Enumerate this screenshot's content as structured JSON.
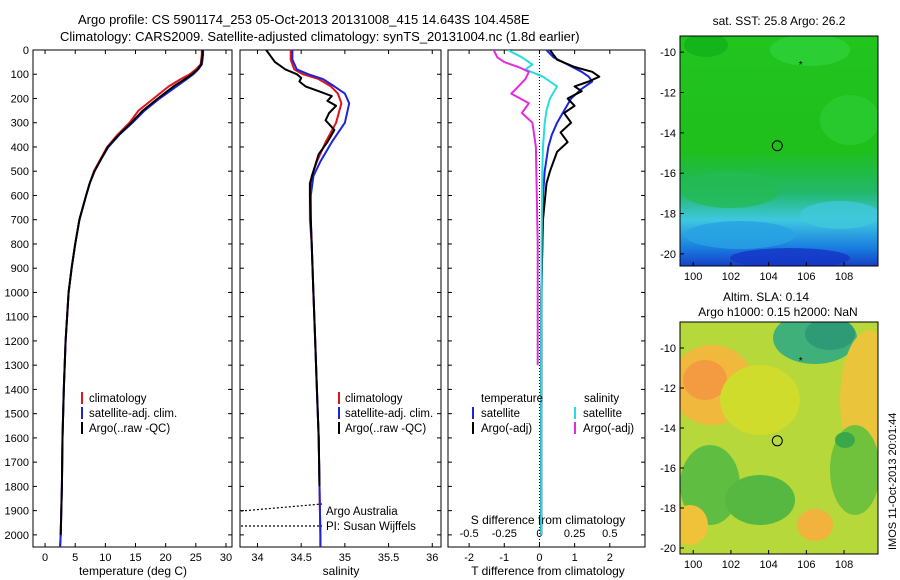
{
  "header": {
    "line1": "Argo profile: CS 5901174_253 05-Oct-2013 20131008_415 14.643S 104.458E",
    "line2": "Climatology: CARS2009. Satellite-adjusted climatology: synTS_20131004.nc (1.8d earlier)"
  },
  "stamp": "IMOS 11-Oct-2013 20:01:44",
  "colors": {
    "red": "#e0141e",
    "blue": "#1a25d8",
    "black": "#000000",
    "cyan": "#27dede",
    "magenta": "#e22ce0"
  },
  "chart_data": [
    {
      "type": "line",
      "panel": "temperature",
      "xlabel": "temperature (deg C)",
      "xlim": [
        -2,
        31
      ],
      "xticks": [
        0,
        5,
        10,
        15,
        20,
        25,
        30
      ],
      "ylim": [
        2050,
        0
      ],
      "yticks": [
        0,
        100,
        200,
        300,
        400,
        500,
        600,
        700,
        800,
        900,
        1000,
        1100,
        1200,
        1300,
        1400,
        1500,
        1600,
        1700,
        1800,
        1900,
        2000
      ],
      "legend": [
        "climatology",
        "satellite-adj. clim.",
        "Argo(..raw -QC)"
      ],
      "series": [
        {
          "name": "climatology",
          "color": "red",
          "x": [
            26,
            26,
            25.9,
            25.8,
            25,
            24,
            22.5,
            20.5,
            18,
            15.5,
            14,
            12,
            10.3,
            9.2,
            8.1,
            7.4,
            6.8,
            5.7,
            5,
            4.4,
            3.9,
            3.4,
            3.1,
            2.9,
            2.8,
            2.6,
            2.5
          ],
          "y": [
            0,
            20,
            40,
            60,
            80,
            100,
            120,
            150,
            200,
            250,
            300,
            350,
            400,
            450,
            500,
            550,
            600,
            700,
            800,
            900,
            1000,
            1200,
            1400,
            1600,
            1800,
            2000,
            2050
          ]
        },
        {
          "name": "satellite-adj. clim.",
          "color": "blue",
          "x": [
            26.2,
            26.2,
            26.1,
            26,
            25.4,
            24.6,
            23.5,
            21.8,
            19,
            16.5,
            14.5,
            12.3,
            10.5,
            9.3,
            8.2,
            7.4,
            6.8,
            5.7,
            5,
            4.4,
            3.9,
            3.4,
            3.1,
            2.9,
            2.8,
            2.6,
            2.5
          ],
          "y": [
            0,
            20,
            40,
            60,
            80,
            100,
            120,
            150,
            200,
            250,
            300,
            350,
            400,
            450,
            500,
            550,
            600,
            700,
            800,
            900,
            1000,
            1200,
            1400,
            1600,
            1800,
            2000,
            2050
          ]
        },
        {
          "name": "Argo(..raw -QC)",
          "color": "black",
          "x": [
            26.1,
            26.1,
            26,
            25.9,
            25.3,
            24.4,
            23.2,
            21.3,
            18.7,
            16.2,
            14.3,
            12.2,
            10.4,
            9.3,
            8.2,
            7.4,
            6.8,
            5.7,
            5,
            4.4,
            3.9,
            3.4,
            3.1,
            2.9,
            2.8,
            2.6
          ],
          "y": [
            0,
            20,
            40,
            60,
            80,
            100,
            120,
            150,
            200,
            250,
            300,
            350,
            400,
            450,
            500,
            550,
            600,
            700,
            800,
            900,
            1000,
            1200,
            1400,
            1600,
            1800,
            2000
          ]
        }
      ]
    },
    {
      "type": "line",
      "panel": "salinity",
      "xlabel": "salinity",
      "xlim": [
        33.8,
        36.1
      ],
      "xticks": [
        34,
        34.5,
        35,
        35.5,
        36
      ],
      "ylim": [
        2050,
        0
      ],
      "legend": [
        "climatology",
        "satellite-adj. clim.",
        "Argo(..raw -QC)"
      ],
      "annotations": [
        "Argo Australia",
        "PI: Susan Wijffels"
      ],
      "series": [
        {
          "name": "climatology",
          "color": "red",
          "x": [
            34.38,
            34.38,
            34.42,
            34.52,
            34.7,
            34.84,
            34.92,
            34.96,
            34.9,
            34.78,
            34.68,
            34.62,
            34.6,
            34.6,
            34.62,
            34.64,
            34.66,
            34.68,
            34.7,
            34.71,
            34.72,
            34.72
          ],
          "y": [
            0,
            40,
            80,
            100,
            120,
            150,
            180,
            220,
            300,
            380,
            460,
            520,
            600,
            700,
            800,
            1000,
            1200,
            1400,
            1600,
            1800,
            2000,
            2050
          ]
        },
        {
          "name": "satellite-adj. clim.",
          "color": "blue",
          "x": [
            34.4,
            34.4,
            34.45,
            34.58,
            34.75,
            34.88,
            35.0,
            35.05,
            35.0,
            34.85,
            34.72,
            34.64,
            34.61,
            34.61,
            34.62,
            34.64,
            34.66,
            34.68,
            34.7,
            34.71,
            34.72,
            34.72
          ],
          "y": [
            0,
            40,
            80,
            100,
            120,
            150,
            180,
            220,
            300,
            380,
            460,
            520,
            600,
            700,
            800,
            1000,
            1200,
            1400,
            1600,
            1800,
            2000,
            2050
          ]
        },
        {
          "name": "Argo(..raw -QC)",
          "color": "black",
          "x": [
            34.1,
            34.15,
            34.2,
            34.32,
            34.45,
            34.5,
            34.48,
            34.55,
            34.7,
            34.85,
            34.8,
            34.9,
            34.82,
            34.78,
            34.88,
            34.8,
            34.7,
            34.64,
            34.6,
            34.6,
            34.61,
            34.62,
            34.64,
            34.66,
            34.68,
            34.7,
            34.71
          ],
          "y": [
            0,
            25,
            50,
            80,
            100,
            115,
            130,
            150,
            170,
            190,
            210,
            230,
            260,
            290,
            330,
            380,
            430,
            500,
            550,
            600,
            700,
            800,
            1000,
            1200,
            1400,
            1600,
            1800
          ]
        }
      ]
    },
    {
      "type": "line",
      "panel": "difference",
      "xlabel": "T difference from climatology",
      "xlabel_top": "S difference from climatology",
      "xlim": [
        -2.6,
        3
      ],
      "xticks": [
        -2,
        -1,
        0,
        1,
        2
      ],
      "xticks_top": [
        -0.5,
        -0.25,
        0,
        0.25,
        0.5
      ],
      "ylim": [
        2050,
        0
      ],
      "legend_headers": [
        "temperature",
        "salinity"
      ],
      "legend": [
        "satellite",
        "Argo(-adj)",
        "satellite",
        "Argo(-adj)"
      ],
      "series": [
        {
          "name": "temperature satellite",
          "color": "blue",
          "x": [
            0.2,
            0.4,
            0.8,
            1.2,
            1.4,
            1.5,
            1.2,
            0.9,
            0.7,
            0.5,
            0.35,
            0.25,
            0.2,
            0.15,
            0.1,
            0.08,
            0.06,
            0.05,
            0.05
          ],
          "y": [
            0,
            30,
            60,
            90,
            110,
            130,
            160,
            200,
            250,
            300,
            350,
            400,
            450,
            500,
            600,
            800,
            1000,
            1500,
            2000
          ]
        },
        {
          "name": "temperature Argo(-adj)",
          "color": "black",
          "x": [
            0.3,
            0.5,
            1.0,
            1.5,
            1.7,
            1.4,
            1.0,
            1.2,
            0.8,
            1.0,
            0.7,
            0.9,
            0.6,
            0.8,
            0.5,
            0.4,
            0.3,
            0.2,
            0.1,
            0.05,
            0.05
          ],
          "y": [
            0,
            40,
            70,
            90,
            110,
            130,
            150,
            170,
            200,
            230,
            260,
            300,
            340,
            380,
            420,
            460,
            500,
            550,
            700,
            1000,
            2000
          ]
        },
        {
          "name": "salinity satellite",
          "color": "cyan",
          "x": [
            -0.9,
            -0.5,
            -0.2,
            -0.4,
            0.1,
            0.5,
            0.3,
            0.2,
            0.15,
            0.1,
            0.08,
            0.06,
            0.05,
            0.05,
            0.05
          ],
          "y": [
            0,
            30,
            60,
            80,
            110,
            150,
            200,
            250,
            300,
            400,
            500,
            800,
            1200,
            1600,
            2000
          ]
        },
        {
          "name": "salinity Argo(-adj)",
          "color": "magenta",
          "x": [
            -1.3,
            -1.2,
            -1.0,
            -0.6,
            -0.3,
            -0.4,
            -0.6,
            -0.8,
            -0.3,
            -0.5,
            -0.2,
            -0.1,
            -0.05,
            -0.05
          ],
          "y": [
            0,
            30,
            50,
            70,
            90,
            120,
            150,
            180,
            220,
            260,
            300,
            400,
            800,
            1300
          ]
        }
      ]
    },
    {
      "type": "heatmap",
      "panel": "sst-map",
      "title": "sat. SST: 25.8 Argo: 26.2",
      "xticks": [
        100,
        102,
        104,
        106,
        108
      ],
      "yticks": [
        -10,
        -12,
        -14,
        -16,
        -18,
        -20
      ],
      "xlim": [
        99.3,
        109.8
      ],
      "ylim": [
        -20.6,
        -9.2
      ],
      "markers": {
        "star": [
          105.7,
          -10.6
        ],
        "circle": [
          104.46,
          -14.64
        ]
      }
    },
    {
      "type": "heatmap",
      "panel": "sla-map",
      "title": "Altim. SLA: 0.14",
      "subtitle": "Argo h1000: 0.15 h2000: NaN",
      "xticks": [
        100,
        102,
        104,
        106,
        108
      ],
      "yticks": [
        -10,
        -12,
        -14,
        -16,
        -18,
        -20
      ],
      "xlim": [
        99.3,
        109.8
      ],
      "ylim": [
        -20.3,
        -8.7
      ],
      "markers": {
        "star": [
          105.7,
          -10.6
        ],
        "circle": [
          104.46,
          -14.64
        ]
      }
    }
  ]
}
